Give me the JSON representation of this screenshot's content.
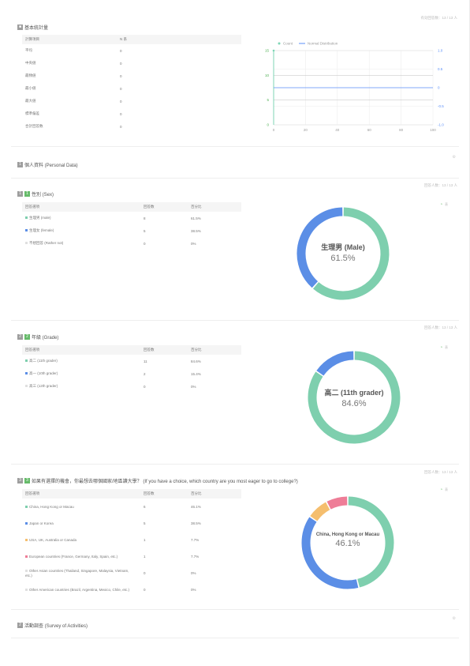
{
  "stats": {
    "title": "基本統計量",
    "resp_label": "有効回答数：13 / 13 人",
    "header": [
      "計算項目",
      "N 系"
    ],
    "rows": [
      {
        "label": "平均",
        "value": "0"
      },
      {
        "label": "中央値",
        "value": "0"
      },
      {
        "label": "最頻値",
        "value": "0"
      },
      {
        "label": "最小値",
        "value": "0"
      },
      {
        "label": "最大値",
        "value": "0"
      },
      {
        "label": "標準偏差",
        "value": "0"
      },
      {
        "label": "合計回答数",
        "value": "0"
      }
    ]
  },
  "chart_data": {
    "type": "line",
    "legend": [
      "Count",
      "Normal Distribution"
    ],
    "colors": {
      "count": "#7fd6b6",
      "normal": "#5b8ff9"
    },
    "x_ticks": [
      "0",
      "20",
      "40",
      "60",
      "80",
      "100"
    ],
    "y_ticks_left": [
      "15",
      "10",
      "5",
      "0"
    ],
    "y_ticks_right": [
      "1.0",
      "0.5",
      "0",
      "-0.5",
      "-1.0"
    ],
    "xlim": [
      0,
      100
    ],
    "ylim": [
      0,
      15
    ],
    "ylim_right": [
      -1.0,
      1.0
    ],
    "count_series": {
      "x": [
        0
      ],
      "y": [
        15
      ]
    },
    "normal_series": {
      "x": [
        0,
        100
      ],
      "y": [
        0,
        0
      ]
    },
    "grid": true,
    "legend_position": "top"
  },
  "personal": {
    "num": "1",
    "title": "個人資料 (Personal Data)"
  },
  "sex": {
    "prefix": "1",
    "num": "1",
    "title": "性別 (Sex)",
    "resp_label": "回答人数：13 / 13 人",
    "tool_label": "表",
    "header": [
      "回答選項",
      "回答数",
      "百分比"
    ],
    "rows": [
      {
        "label": "生理男 (male)",
        "count": "8",
        "pct": "61.5%",
        "color": "#7ecfae"
      },
      {
        "label": "生理女 (female)",
        "count": "5",
        "pct": "38.5%",
        "color": "#5b8ee6"
      },
      {
        "label": "不想回答 (Rather not)",
        "count": "0",
        "pct": "0%",
        "color": "#e0e0e0"
      }
    ],
    "center_label": "生理男 (Male)",
    "center_pct": "61.5%",
    "values": [
      61.5,
      38.5
    ]
  },
  "grade": {
    "prefix": "2",
    "num": "2",
    "title": "年級 (Grade)",
    "resp_label": "回答人数：13 / 13 人",
    "tool_label": "表",
    "header": [
      "回答選項",
      "回答数",
      "百分比"
    ],
    "rows": [
      {
        "label": "高二 (11th grader)",
        "count": "11",
        "pct": "84.6%",
        "color": "#7ecfae"
      },
      {
        "label": "高一 (10th grader)",
        "count": "2",
        "pct": "15.4%",
        "color": "#5b8ee6"
      },
      {
        "label": "高三 (12th grader)",
        "count": "0",
        "pct": "0%",
        "color": "#e0e0e0"
      }
    ],
    "center_label": "高二 (11th grader)",
    "center_pct": "84.6%",
    "values": [
      84.6,
      15.4
    ]
  },
  "country": {
    "prefix": "3",
    "num": "3",
    "title": "如果有選擇的機會，你最想去哪個國家/地區讀大學？ (If you have a choice, which country are you most eager to go to college?)",
    "resp_label": "回答人数：13 / 13 人",
    "tool_label": "表",
    "header": [
      "回答選項",
      "回答数",
      "百分比"
    ],
    "rows": [
      {
        "label": "China, Hong Kong or Macau",
        "count": "6",
        "pct": "46.1%",
        "color": "#7ecfae"
      },
      {
        "label": "Japan or Korea",
        "count": "5",
        "pct": "38.5%",
        "color": "#5b8ee6"
      },
      {
        "label": "USA, UK, Australia or Canada",
        "count": "1",
        "pct": "7.7%",
        "color": "#f5be6e"
      },
      {
        "label": "European countries (France, Germany, Italy, Spain, etc.)",
        "count": "1",
        "pct": "7.7%",
        "color": "#ee7d97"
      },
      {
        "label": "Other Asian countries (Thailand, Singapore, Malaysia, Vietnam, etc.)",
        "count": "0",
        "pct": "0%",
        "color": "#e0e0e0"
      },
      {
        "label": "Other American countries (Brazil, Argentina, Mexico, Chile, etc.)",
        "count": "0",
        "pct": "0%",
        "color": "#e0e0e0"
      }
    ],
    "center_label": "China, Hong Kong or Macau",
    "center_pct": "46.1%",
    "values": [
      46.1,
      38.5,
      7.7,
      7.7
    ]
  },
  "survey": {
    "num": "2",
    "title": "活動調查 (Survey of Activities)"
  }
}
